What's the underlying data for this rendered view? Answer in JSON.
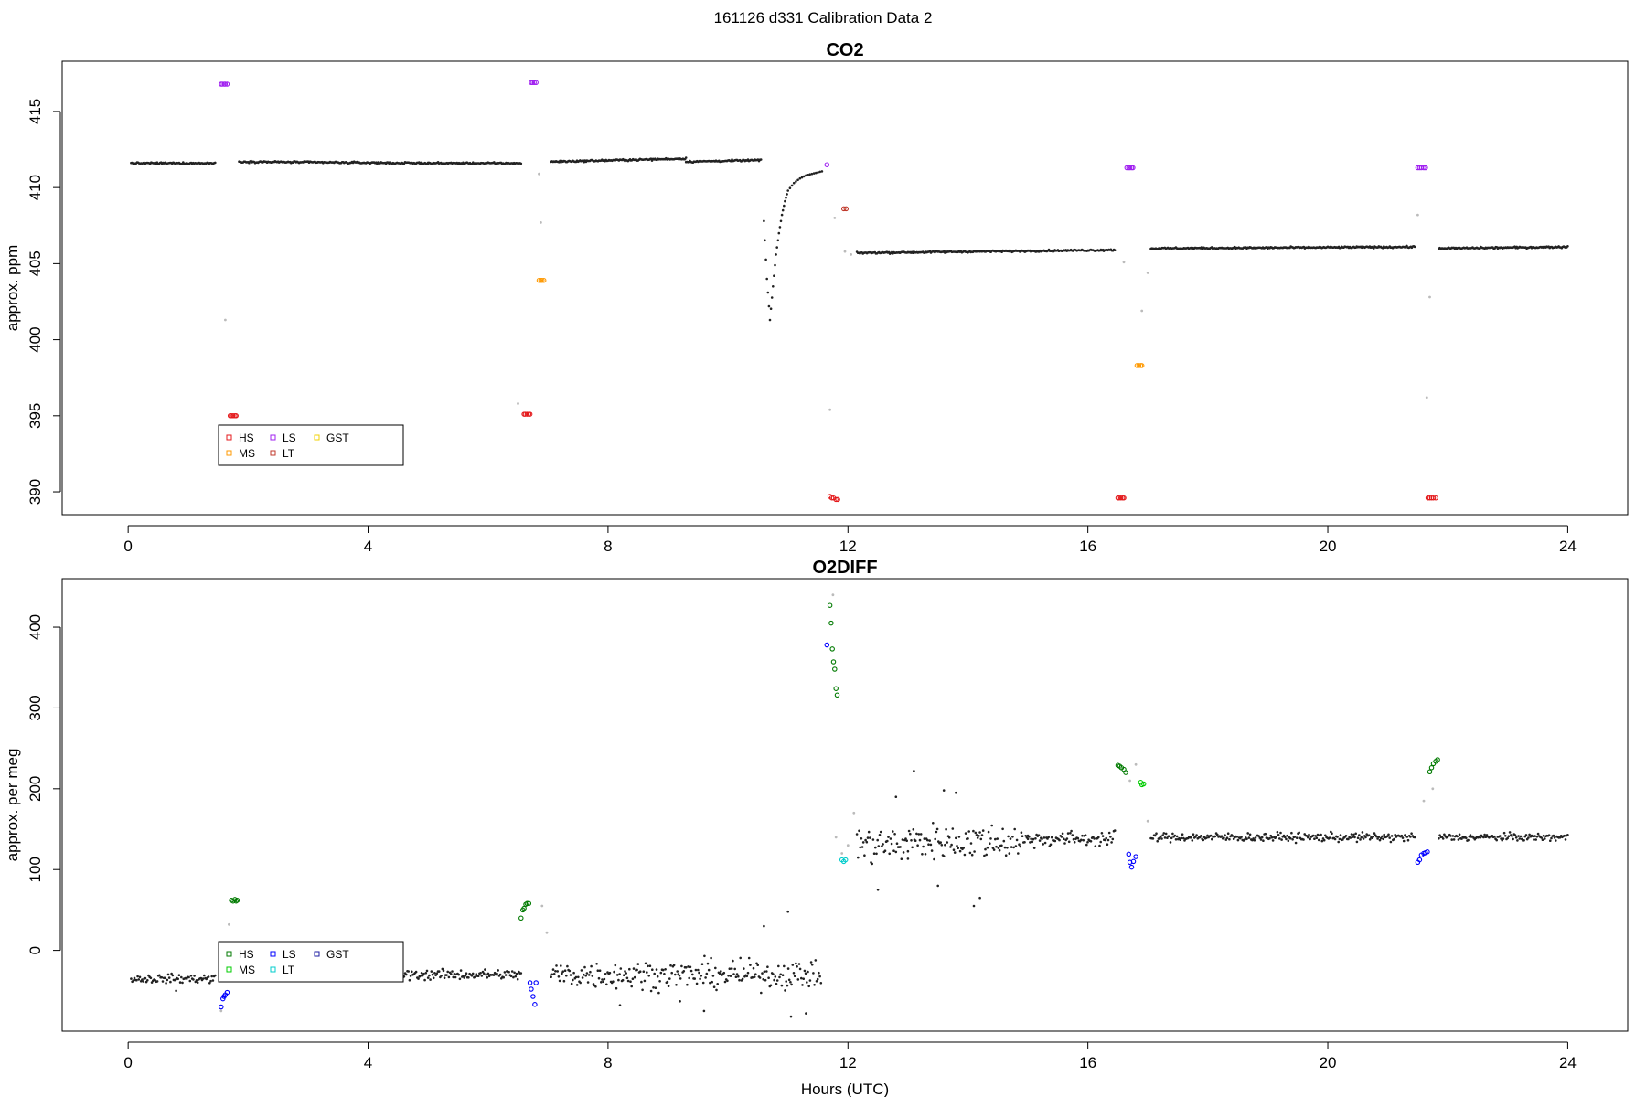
{
  "page": {
    "title": "161126   d331   Calibration Data 2"
  },
  "colors": {
    "data": "#222222",
    "flagged": "#bbbbbb",
    "HS_co2": "#e41a1c",
    "MS_co2": "#ff9900",
    "LS_co2": "#a020f0",
    "LT_co2": "#c0392b",
    "GST_co2": "#f0d000",
    "HS_o2": "#007a00",
    "MS_o2": "#00cc00",
    "LS_o2": "#0000ff",
    "LT_o2": "#00cccc",
    "GST_o2": "#1a1aa0"
  },
  "chart_data": [
    {
      "type": "scatter",
      "id": "co2",
      "title": "CO2",
      "xlabel": "",
      "ylabel": "approx. ppm",
      "xlim": [
        -1.1,
        25.0
      ],
      "ylim": [
        388.5,
        418.3
      ],
      "xticks": [
        0,
        4,
        8,
        12,
        16,
        20,
        24
      ],
      "yticks": [
        390,
        395,
        400,
        405,
        410,
        415
      ],
      "legend": {
        "placement": "bottom-left",
        "entries": [
          {
            "label": "HS",
            "color_key": "HS_co2"
          },
          {
            "label": "MS",
            "color_key": "MS_co2"
          },
          {
            "label": "LS",
            "color_key": "LS_co2"
          },
          {
            "label": "LT",
            "color_key": "LT_co2"
          },
          {
            "label": "GST",
            "color_key": "GST_co2"
          }
        ]
      },
      "ambient_segments": [
        {
          "x": [
            0.05,
            1.45
          ],
          "y": [
            411.6,
            411.6
          ]
        },
        {
          "x": [
            1.85,
            5.0
          ],
          "y": [
            411.7,
            411.6
          ]
        },
        {
          "x": [
            5.0,
            6.55
          ],
          "y": [
            411.6,
            411.6
          ]
        },
        {
          "x": [
            7.05,
            9.3
          ],
          "y": [
            411.7,
            411.9
          ]
        },
        {
          "x": [
            9.3,
            10.55
          ],
          "y": [
            411.7,
            411.8
          ]
        },
        {
          "x": [
            12.15,
            16.45
          ],
          "y": [
            405.7,
            405.9
          ]
        },
        {
          "x": [
            17.05,
            21.45
          ],
          "y": [
            406.0,
            406.1
          ]
        },
        {
          "x": [
            21.85,
            24.0
          ],
          "y": [
            406.0,
            406.1
          ]
        }
      ],
      "ambient_curve": {
        "x": [
          10.6,
          10.65,
          10.7,
          10.75,
          10.8,
          10.85,
          10.9,
          10.95,
          11.0,
          11.1,
          11.2,
          11.3,
          11.4,
          11.5,
          11.6
        ],
        "y": [
          407.8,
          404.0,
          401.3,
          403.5,
          405.6,
          407.0,
          408.2,
          409.1,
          409.8,
          410.3,
          410.6,
          410.8,
          410.9,
          411.0,
          411.1
        ]
      },
      "flagged_points": {
        "x": [
          1.62,
          6.5,
          6.85,
          6.88,
          11.7,
          11.78,
          11.95,
          12.05,
          16.6,
          16.9,
          17.0,
          21.5,
          21.65,
          21.7
        ],
        "y": [
          401.3,
          395.8,
          410.9,
          407.7,
          395.4,
          408.0,
          405.8,
          405.6,
          405.1,
          401.9,
          404.4,
          408.2,
          396.2,
          402.8
        ]
      },
      "calibrations": [
        {
          "tank": "LS",
          "color_key": "LS_co2",
          "x": [
            1.55,
            1.57,
            1.6,
            1.62,
            1.65
          ],
          "y": [
            416.8,
            416.8,
            416.8,
            416.8,
            416.8
          ]
        },
        {
          "tank": "HS",
          "color_key": "HS_co2",
          "x": [
            1.7,
            1.72,
            1.75,
            1.78,
            1.8
          ],
          "y": [
            395.0,
            395.0,
            395.0,
            395.0,
            395.0
          ]
        },
        {
          "tank": "HS",
          "color_key": "HS_co2",
          "x": [
            6.6,
            6.62,
            6.65,
            6.68,
            6.7
          ],
          "y": [
            395.1,
            395.1,
            395.1,
            395.1,
            395.1
          ]
        },
        {
          "tank": "LS",
          "color_key": "LS_co2",
          "x": [
            6.72,
            6.74,
            6.77,
            6.8
          ],
          "y": [
            416.9,
            416.9,
            416.9,
            416.9
          ]
        },
        {
          "tank": "MS",
          "color_key": "MS_co2",
          "x": [
            6.85,
            6.88,
            6.9,
            6.93
          ],
          "y": [
            403.9,
            403.9,
            403.9,
            403.9
          ]
        },
        {
          "tank": "LS",
          "color_key": "LS_co2",
          "x": [
            11.65
          ],
          "y": [
            411.5
          ]
        },
        {
          "tank": "HS",
          "color_key": "HS_co2",
          "x": [
            11.7,
            11.73,
            11.76,
            11.8,
            11.83
          ],
          "y": [
            389.7,
            389.6,
            389.6,
            389.5,
            389.5
          ]
        },
        {
          "tank": "LT",
          "color_key": "LT_co2",
          "x": [
            11.93,
            11.97
          ],
          "y": [
            408.6,
            408.6
          ]
        },
        {
          "tank": "HS",
          "color_key": "HS_co2",
          "x": [
            16.5,
            16.52,
            16.55,
            16.58,
            16.6
          ],
          "y": [
            389.6,
            389.6,
            389.6,
            389.6,
            389.6
          ]
        },
        {
          "tank": "LS",
          "color_key": "LS_co2",
          "x": [
            16.65,
            16.68,
            16.7,
            16.73,
            16.75
          ],
          "y": [
            411.3,
            411.3,
            411.3,
            411.3,
            411.3
          ]
        },
        {
          "tank": "MS",
          "color_key": "MS_co2",
          "x": [
            16.82,
            16.85,
            16.88,
            16.9
          ],
          "y": [
            398.3,
            398.3,
            398.3,
            398.3
          ]
        },
        {
          "tank": "LS",
          "color_key": "LS_co2",
          "x": [
            21.5,
            21.53,
            21.56,
            21.6,
            21.63
          ],
          "y": [
            411.3,
            411.3,
            411.3,
            411.3,
            411.3
          ]
        },
        {
          "tank": "HS",
          "color_key": "HS_co2",
          "x": [
            21.67,
            21.7,
            21.73,
            21.76,
            21.8
          ],
          "y": [
            389.6,
            389.6,
            389.6,
            389.6,
            389.6
          ]
        }
      ]
    },
    {
      "type": "scatter",
      "id": "o2diff",
      "title": "O2DIFF",
      "xlabel": "Hours (UTC)",
      "ylabel": "approx. per meg",
      "xlim": [
        -1.1,
        25.0
      ],
      "ylim": [
        -100,
        460
      ],
      "xticks": [
        0,
        4,
        8,
        12,
        16,
        20,
        24
      ],
      "yticks": [
        0,
        100,
        200,
        300,
        400
      ],
      "legend": {
        "placement": "bottom-left",
        "entries": [
          {
            "label": "HS",
            "color_key": "HS_o2"
          },
          {
            "label": "MS",
            "color_key": "MS_o2"
          },
          {
            "label": "LS",
            "color_key": "LS_o2"
          },
          {
            "label": "LT",
            "color_key": "LT_o2"
          },
          {
            "label": "GST",
            "color_key": "GST_o2"
          }
        ]
      },
      "ambient_bands": [
        {
          "x": [
            0.05,
            1.45
          ],
          "mean": -35,
          "spread": 7
        },
        {
          "x": [
            1.85,
            6.55
          ],
          "mean": -30,
          "spread": 8
        },
        {
          "x": [
            7.05,
            11.55
          ],
          "mean": -30,
          "spread": 22
        },
        {
          "x": [
            12.15,
            13.0
          ],
          "mean": 130,
          "spread": 30
        },
        {
          "x": [
            13.0,
            15.0
          ],
          "mean": 135,
          "spread": 28
        },
        {
          "x": [
            15.0,
            16.45
          ],
          "mean": 138,
          "spread": 12
        },
        {
          "x": [
            17.05,
            21.45
          ],
          "mean": 140,
          "spread": 7
        },
        {
          "x": [
            21.85,
            24.0
          ],
          "mean": 140,
          "spread": 6
        }
      ],
      "ambient_outliers": {
        "x": [
          0.8,
          8.2,
          9.2,
          9.6,
          10.6,
          11.0,
          11.05,
          11.3,
          13.1,
          13.6,
          13.8,
          14.1,
          12.5,
          12.8,
          13.5,
          14.2
        ],
        "y": [
          -50,
          -68,
          -63,
          -75,
          30,
          48,
          -82,
          -78,
          222,
          198,
          195,
          55,
          75,
          190,
          80,
          65
        ]
      },
      "flagged_points": {
        "x": [
          1.55,
          1.68,
          6.6,
          6.9,
          6.98,
          11.75,
          11.8,
          11.9,
          12.0,
          12.1,
          16.7,
          16.8,
          17.0,
          21.6,
          21.75
        ],
        "y": [
          -75,
          32,
          50,
          55,
          22,
          440,
          140,
          120,
          130,
          170,
          210,
          230,
          160,
          185,
          200
        ]
      },
      "calibrations": [
        {
          "tank": "LS",
          "color_key": "LS_o2",
          "x": [
            1.55,
            1.58,
            1.6,
            1.62,
            1.65
          ],
          "y": [
            -70,
            -60,
            -57,
            -55,
            -52
          ]
        },
        {
          "tank": "HS",
          "color_key": "HS_o2",
          "x": [
            1.72,
            1.75,
            1.78,
            1.8,
            1.82
          ],
          "y": [
            62,
            61,
            63,
            61,
            62
          ]
        },
        {
          "tank": "HS",
          "color_key": "HS_o2",
          "x": [
            6.55,
            6.58,
            6.6,
            6.63,
            6.65,
            6.68
          ],
          "y": [
            40,
            50,
            52,
            57,
            58,
            58
          ]
        },
        {
          "tank": "LS",
          "color_key": "LS_o2",
          "x": [
            6.7,
            6.72,
            6.75,
            6.78,
            6.8
          ],
          "y": [
            -40,
            -48,
            -57,
            -67,
            -40
          ]
        },
        {
          "tank": "LS",
          "color_key": "LS_o2",
          "x": [
            11.65
          ],
          "y": [
            378
          ]
        },
        {
          "tank": "HS",
          "color_key": "HS_o2",
          "x": [
            11.7,
            11.72,
            11.74,
            11.76,
            11.78,
            11.8,
            11.82
          ],
          "y": [
            427,
            405,
            373,
            357,
            348,
            324,
            316
          ]
        },
        {
          "tank": "LT",
          "color_key": "LT_o2",
          "x": [
            11.9,
            11.93,
            11.96
          ],
          "y": [
            112,
            110,
            112
          ]
        },
        {
          "tank": "HS",
          "color_key": "HS_o2",
          "x": [
            16.5,
            16.53,
            16.56,
            16.6,
            16.63
          ],
          "y": [
            229,
            228,
            226,
            224,
            220
          ]
        },
        {
          "tank": "LS",
          "color_key": "LS_o2",
          "x": [
            16.68,
            16.7,
            16.73,
            16.76,
            16.8
          ],
          "y": [
            119,
            109,
            103,
            110,
            116
          ]
        },
        {
          "tank": "MS",
          "color_key": "MS_o2",
          "x": [
            16.88,
            16.9,
            16.93
          ],
          "y": [
            208,
            205,
            206
          ]
        },
        {
          "tank": "LS",
          "color_key": "LS_o2",
          "x": [
            21.5,
            21.53,
            21.56,
            21.6,
            21.63,
            21.66
          ],
          "y": [
            109,
            112,
            118,
            120,
            121,
            122
          ]
        },
        {
          "tank": "HS",
          "color_key": "HS_o2",
          "x": [
            21.7,
            21.73,
            21.76,
            21.8,
            21.83
          ],
          "y": [
            221,
            226,
            231,
            234,
            236
          ]
        }
      ]
    }
  ]
}
